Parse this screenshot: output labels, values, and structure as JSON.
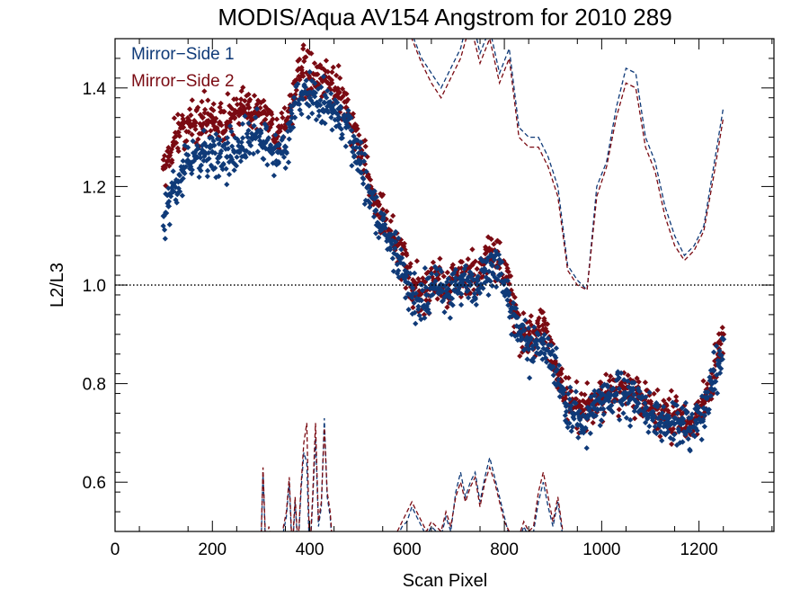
{
  "chart_data": {
    "type": "scatter",
    "title": "MODIS/Aqua AV154 Angstrom for 2010 289",
    "xlabel": "Scan Pixel",
    "ylabel": "L2/L3",
    "xlim": [
      0,
      1354
    ],
    "ylim": [
      0.5,
      1.5
    ],
    "x_ticks": [
      0,
      200,
      400,
      600,
      800,
      1000,
      1200
    ],
    "x_tick_labels": [
      "0",
      "200",
      "400",
      "600",
      "800",
      "1000",
      "1200"
    ],
    "y_ticks": [
      0.6,
      0.8,
      1.0,
      1.2,
      1.4
    ],
    "y_tick_labels": [
      "0.6",
      "0.8",
      "1.0",
      "1.2",
      "1.4"
    ],
    "reference_line": 1.0,
    "grid": false,
    "legend_position": "top-left",
    "series": [
      {
        "name": "Mirror−Side 1",
        "color": "#0f3a78",
        "style": "points",
        "x": [
          100,
          110,
          120,
          130,
          140,
          150,
          165,
          180,
          200,
          215,
          230,
          245,
          260,
          275,
          290,
          305,
          320,
          335,
          350,
          360,
          370,
          385,
          400,
          415,
          430,
          445,
          460,
          475,
          490,
          505,
          520,
          535,
          550,
          565,
          580,
          595,
          610,
          625,
          640,
          655,
          670,
          685,
          700,
          715,
          730,
          745,
          760,
          775,
          790,
          805,
          820,
          835,
          850,
          865,
          880,
          895,
          910,
          925,
          940,
          955,
          970,
          985,
          1000,
          1015,
          1030,
          1045,
          1060,
          1075,
          1090,
          1105,
          1120,
          1135,
          1150,
          1165,
          1180,
          1195,
          1210,
          1225,
          1240,
          1250
        ],
        "y": [
          1.14,
          1.16,
          1.19,
          1.21,
          1.23,
          1.25,
          1.26,
          1.27,
          1.27,
          1.26,
          1.26,
          1.27,
          1.28,
          1.29,
          1.3,
          1.29,
          1.28,
          1.27,
          1.28,
          1.32,
          1.37,
          1.39,
          1.38,
          1.37,
          1.37,
          1.36,
          1.34,
          1.32,
          1.29,
          1.25,
          1.2,
          1.15,
          1.12,
          1.09,
          1.06,
          1.02,
          0.98,
          0.97,
          0.98,
          1.0,
          0.99,
          0.98,
          1.0,
          1.01,
          1.0,
          0.99,
          1.03,
          1.04,
          1.02,
          0.99,
          0.94,
          0.89,
          0.87,
          0.88,
          0.89,
          0.86,
          0.8,
          0.76,
          0.74,
          0.73,
          0.73,
          0.75,
          0.76,
          0.77,
          0.78,
          0.78,
          0.77,
          0.76,
          0.75,
          0.73,
          0.72,
          0.72,
          0.73,
          0.72,
          0.71,
          0.72,
          0.75,
          0.79,
          0.84,
          0.89
        ]
      },
      {
        "name": "Mirror−Side 2",
        "color": "#7a0a12",
        "style": "points",
        "x": [
          100,
          110,
          120,
          130,
          140,
          150,
          165,
          180,
          200,
          215,
          230,
          245,
          260,
          275,
          290,
          305,
          320,
          335,
          350,
          360,
          370,
          385,
          400,
          415,
          430,
          445,
          460,
          475,
          490,
          505,
          520,
          535,
          550,
          565,
          580,
          595,
          610,
          625,
          640,
          655,
          670,
          685,
          700,
          715,
          730,
          745,
          760,
          775,
          790,
          805,
          820,
          835,
          850,
          865,
          880,
          895,
          910,
          925,
          940,
          955,
          970,
          985,
          1000,
          1015,
          1030,
          1045,
          1060,
          1075,
          1090,
          1105,
          1120,
          1135,
          1150,
          1165,
          1180,
          1195,
          1210,
          1225,
          1240,
          1250
        ],
        "y": [
          1.24,
          1.26,
          1.29,
          1.31,
          1.32,
          1.33,
          1.33,
          1.34,
          1.34,
          1.33,
          1.33,
          1.34,
          1.35,
          1.36,
          1.36,
          1.35,
          1.33,
          1.31,
          1.32,
          1.36,
          1.41,
          1.43,
          1.42,
          1.41,
          1.42,
          1.41,
          1.39,
          1.36,
          1.32,
          1.27,
          1.22,
          1.17,
          1.14,
          1.11,
          1.08,
          1.04,
          1.0,
          0.98,
          0.99,
          1.01,
          1.0,
          0.99,
          1.01,
          1.02,
          1.02,
          1.01,
          1.05,
          1.07,
          1.05,
          1.01,
          0.95,
          0.9,
          0.89,
          0.9,
          0.91,
          0.88,
          0.82,
          0.77,
          0.75,
          0.74,
          0.75,
          0.76,
          0.77,
          0.78,
          0.79,
          0.79,
          0.78,
          0.77,
          0.76,
          0.74,
          0.73,
          0.73,
          0.74,
          0.73,
          0.72,
          0.73,
          0.76,
          0.8,
          0.86,
          0.9
        ]
      },
      {
        "color": "#0f3a78",
        "style": "dashed",
        "segments": [
          {
            "x": [
              300,
              304,
              310,
              316,
              322,
              328,
              334,
              340,
              346,
              352,
              358,
              364,
              370,
              376,
              382,
              388,
              394,
              400,
              406,
              412,
              418,
              424,
              430,
              436,
              442,
              448
            ],
            "y": [
              0.47,
              0.62,
              0.45,
              0.5,
              0.47,
              0.45,
              0.48,
              0.43,
              0.5,
              0.53,
              0.6,
              0.45,
              0.56,
              0.46,
              0.58,
              0.66,
              0.64,
              0.44,
              0.56,
              0.69,
              0.51,
              0.55,
              0.73,
              0.57,
              0.53,
              0.45
            ]
          },
          {
            "x": [
              580,
              590,
              600,
              610,
              620,
              630,
              640,
              650,
              660,
              670,
              680,
              690,
              700,
              710,
              720,
              730,
              740,
              750,
              760,
              770,
              780,
              790,
              800,
              810,
              820,
              830,
              840,
              850,
              860,
              870,
              880,
              890,
              900,
              910,
              920
            ],
            "y": [
              0.49,
              0.51,
              0.52,
              0.55,
              0.53,
              0.51,
              0.49,
              0.51,
              0.5,
              0.49,
              0.53,
              0.5,
              0.58,
              0.62,
              0.57,
              0.6,
              0.62,
              0.56,
              0.61,
              0.65,
              0.61,
              0.57,
              0.53,
              0.49,
              0.46,
              0.48,
              0.51,
              0.49,
              0.5,
              0.56,
              0.6,
              0.55,
              0.51,
              0.56,
              0.49
            ]
          },
          {
            "x": [
              570,
              590,
              610,
              630,
              650,
              670,
              690,
              710,
              730,
              750,
              770,
              790,
              810,
              830,
              850,
              870,
              890,
              910,
              930,
              950,
              970,
              990,
              1010,
              1030,
              1050,
              1070,
              1090,
              1110,
              1130,
              1150,
              1170,
              1190,
              1210,
              1230,
              1250
            ],
            "y": [
              1.52,
              1.53,
              1.51,
              1.46,
              1.43,
              1.4,
              1.44,
              1.48,
              1.56,
              1.47,
              1.52,
              1.43,
              1.48,
              1.32,
              1.3,
              1.3,
              1.26,
              1.2,
              1.04,
              1.01,
              0.99,
              1.2,
              1.25,
              1.36,
              1.44,
              1.43,
              1.3,
              1.25,
              1.16,
              1.1,
              1.06,
              1.08,
              1.12,
              1.24,
              1.36
            ]
          }
        ]
      },
      {
        "color": "#7a0a12",
        "style": "dashed",
        "segments": [
          {
            "x": [
              300,
              304,
              310,
              316,
              322,
              328,
              334,
              340,
              346,
              352,
              358,
              364,
              370,
              376,
              382,
              388,
              394,
              400,
              406,
              412,
              418,
              424,
              430,
              436,
              442,
              448
            ],
            "y": [
              0.48,
              0.63,
              0.46,
              0.51,
              0.48,
              0.46,
              0.49,
              0.44,
              0.51,
              0.54,
              0.61,
              0.46,
              0.57,
              0.47,
              0.59,
              0.68,
              0.72,
              0.45,
              0.57,
              0.72,
              0.52,
              0.56,
              0.71,
              0.58,
              0.54,
              0.46
            ]
          },
          {
            "x": [
              580,
              590,
              600,
              610,
              620,
              630,
              640,
              650,
              660,
              670,
              680,
              690,
              700,
              710,
              720,
              730,
              740,
              750,
              760,
              770,
              780,
              790,
              800,
              810,
              820,
              830,
              840,
              850,
              860,
              870,
              880,
              890,
              900,
              910,
              920
            ],
            "y": [
              0.5,
              0.52,
              0.54,
              0.56,
              0.54,
              0.52,
              0.5,
              0.52,
              0.51,
              0.5,
              0.54,
              0.51,
              0.57,
              0.6,
              0.56,
              0.59,
              0.61,
              0.55,
              0.6,
              0.63,
              0.6,
              0.56,
              0.52,
              0.5,
              0.47,
              0.49,
              0.52,
              0.5,
              0.51,
              0.58,
              0.62,
              0.57,
              0.52,
              0.57,
              0.5
            ]
          },
          {
            "x": [
              570,
              590,
              610,
              630,
              650,
              670,
              690,
              710,
              730,
              750,
              770,
              790,
              810,
              830,
              850,
              870,
              890,
              910,
              930,
              950,
              970,
              990,
              1010,
              1030,
              1050,
              1070,
              1090,
              1110,
              1130,
              1150,
              1170,
              1190,
              1210,
              1230,
              1250
            ],
            "y": [
              1.52,
              1.52,
              1.5,
              1.45,
              1.41,
              1.38,
              1.42,
              1.46,
              1.53,
              1.45,
              1.5,
              1.41,
              1.46,
              1.3,
              1.28,
              1.28,
              1.24,
              1.18,
              1.03,
              1.0,
              0.99,
              1.18,
              1.24,
              1.34,
              1.41,
              1.4,
              1.28,
              1.23,
              1.14,
              1.08,
              1.05,
              1.07,
              1.11,
              1.22,
              1.34
            ]
          }
        ]
      }
    ]
  }
}
